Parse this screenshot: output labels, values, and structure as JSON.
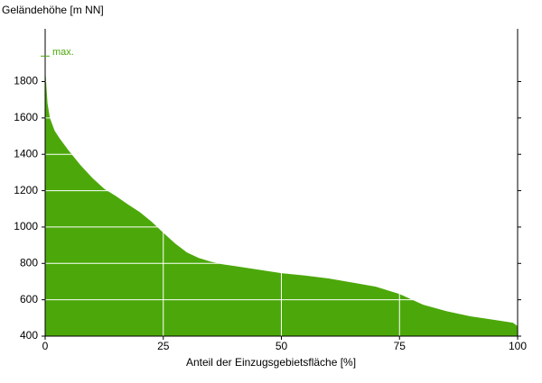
{
  "chart_data": {
    "type": "area",
    "y_label": "Geländehöhe [m NN]",
    "x_label": "Anteil der Einzugsgebietsfläche [%]",
    "x": [
      0,
      0.2,
      0.5,
      1,
      2,
      3,
      5,
      7.5,
      10,
      12.5,
      15,
      17.5,
      20,
      22.5,
      25,
      27.5,
      30,
      32.5,
      35,
      37.5,
      40,
      45,
      50,
      55,
      60,
      65,
      70,
      75,
      80,
      85,
      90,
      95,
      99,
      100
    ],
    "values": [
      1870,
      1800,
      1680,
      1600,
      1530,
      1490,
      1420,
      1340,
      1270,
      1210,
      1170,
      1125,
      1083,
      1030,
      969,
      910,
      860,
      830,
      810,
      795,
      786,
      766,
      746,
      733,
      717,
      695,
      672,
      632,
      573,
      537,
      509,
      490,
      474,
      455
    ],
    "color": "#4ca80a",
    "annotation": {
      "text": "max.",
      "value": 1940
    },
    "xlim": [
      0,
      100
    ],
    "xticks": [
      0,
      25,
      50,
      75,
      100
    ],
    "ylim": [
      400,
      2090
    ],
    "yticks": [
      400,
      600,
      800,
      1000,
      1200,
      1400,
      1600,
      1800
    ],
    "grid": true
  }
}
